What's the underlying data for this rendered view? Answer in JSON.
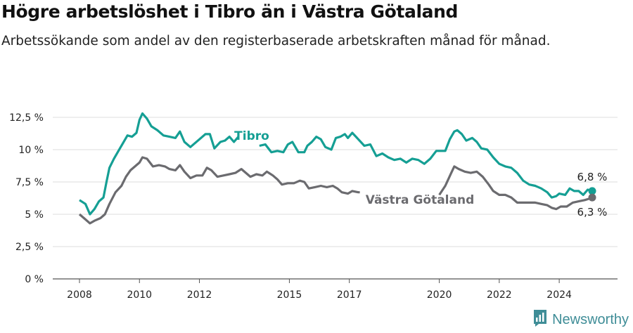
{
  "title": "Högre arbetslöshet i Tibro än i Västra Götaland",
  "subtitle": "Arbetssökande som andel av den registerbaserade arbetskraften månad för månad.",
  "brand": {
    "name": "Newsworthy",
    "color": "#3f8d97"
  },
  "chart_data": {
    "type": "line",
    "title": "Högre arbetslöshet i Tibro än i Västra Götaland",
    "subtitle": "Arbetssökande som andel av den registerbaserade arbetskraften månad för månad.",
    "xlabel": "",
    "ylabel": "",
    "x_ticks": [
      "2008",
      "2010",
      "2012",
      "2015",
      "2017",
      "2020",
      "2022",
      "2024"
    ],
    "x_tick_values": [
      2008,
      2010,
      2012,
      2015,
      2017,
      2020,
      2022,
      2024
    ],
    "y_ticks": [
      "0 %",
      "2,5 %",
      "5 %",
      "7,5 %",
      "10 %",
      "12,5 %"
    ],
    "y_tick_values": [
      0,
      2.5,
      5,
      7.5,
      10,
      12.5
    ],
    "xlim": [
      2007.5,
      2025.5
    ],
    "ylim": [
      0,
      12.5
    ],
    "grid": "horizontal",
    "series": [
      {
        "name": "Tibro",
        "color": "#159f94",
        "end_label": "6,8 %",
        "points": [
          [
            2008.0,
            6.1
          ],
          [
            2008.2,
            5.8
          ],
          [
            2008.35,
            5.0
          ],
          [
            2008.5,
            5.4
          ],
          [
            2008.65,
            6.0
          ],
          [
            2008.8,
            6.3
          ],
          [
            2008.9,
            7.5
          ],
          [
            2009.0,
            8.6
          ],
          [
            2009.15,
            9.3
          ],
          [
            2009.3,
            9.9
          ],
          [
            2009.45,
            10.5
          ],
          [
            2009.6,
            11.1
          ],
          [
            2009.75,
            11.0
          ],
          [
            2009.9,
            11.3
          ],
          [
            2010.0,
            12.3
          ],
          [
            2010.1,
            12.8
          ],
          [
            2010.25,
            12.4
          ],
          [
            2010.4,
            11.8
          ],
          [
            2010.6,
            11.5
          ],
          [
            2010.8,
            11.1
          ],
          [
            2011.0,
            11.0
          ],
          [
            2011.2,
            10.9
          ],
          [
            2011.35,
            11.4
          ],
          [
            2011.5,
            10.6
          ],
          [
            2011.7,
            10.2
          ],
          [
            2011.85,
            10.5
          ],
          [
            2012.0,
            10.8
          ],
          [
            2012.2,
            11.2
          ],
          [
            2012.35,
            11.2
          ],
          [
            2012.5,
            10.1
          ],
          [
            2012.7,
            10.6
          ],
          [
            2012.85,
            10.7
          ],
          [
            2013.0,
            11.0
          ],
          [
            2013.15,
            10.6
          ],
          [
            2013.3,
            11.0
          ],
          [
            2014.0,
            10.3
          ],
          [
            2014.2,
            10.4
          ],
          [
            2014.4,
            9.8
          ],
          [
            2014.6,
            9.9
          ],
          [
            2014.8,
            9.8
          ],
          [
            2014.95,
            10.4
          ],
          [
            2015.1,
            10.6
          ],
          [
            2015.3,
            9.8
          ],
          [
            2015.5,
            9.8
          ],
          [
            2015.6,
            10.3
          ],
          [
            2015.75,
            10.6
          ],
          [
            2015.9,
            11.0
          ],
          [
            2016.05,
            10.8
          ],
          [
            2016.2,
            10.2
          ],
          [
            2016.4,
            10.0
          ],
          [
            2016.55,
            10.9
          ],
          [
            2016.7,
            11.0
          ],
          [
            2016.85,
            11.2
          ],
          [
            2016.95,
            10.9
          ],
          [
            2017.1,
            11.3
          ],
          [
            2017.3,
            10.8
          ],
          [
            2017.5,
            10.3
          ],
          [
            2017.7,
            10.4
          ],
          [
            2017.9,
            9.5
          ],
          [
            2018.1,
            9.7
          ],
          [
            2018.3,
            9.4
          ],
          [
            2018.5,
            9.2
          ],
          [
            2018.7,
            9.3
          ],
          [
            2018.9,
            9.0
          ],
          [
            2019.1,
            9.3
          ],
          [
            2019.3,
            9.2
          ],
          [
            2019.5,
            8.9
          ],
          [
            2019.7,
            9.3
          ],
          [
            2019.9,
            9.9
          ],
          [
            2020.1,
            9.9
          ],
          [
            2020.2,
            9.9
          ],
          [
            2020.35,
            10.8
          ],
          [
            2020.5,
            11.4
          ],
          [
            2020.6,
            11.5
          ],
          [
            2020.75,
            11.2
          ],
          [
            2020.9,
            10.7
          ],
          [
            2021.1,
            10.9
          ],
          [
            2021.25,
            10.6
          ],
          [
            2021.4,
            10.1
          ],
          [
            2021.6,
            10.0
          ],
          [
            2021.8,
            9.4
          ],
          [
            2022.0,
            8.9
          ],
          [
            2022.2,
            8.7
          ],
          [
            2022.4,
            8.6
          ],
          [
            2022.6,
            8.2
          ],
          [
            2022.8,
            7.6
          ],
          [
            2023.0,
            7.3
          ],
          [
            2023.2,
            7.2
          ],
          [
            2023.4,
            7.0
          ],
          [
            2023.6,
            6.7
          ],
          [
            2023.75,
            6.3
          ],
          [
            2023.9,
            6.4
          ],
          [
            2024.0,
            6.6
          ],
          [
            2024.2,
            6.5
          ],
          [
            2024.35,
            7.0
          ],
          [
            2024.5,
            6.8
          ],
          [
            2024.65,
            6.8
          ],
          [
            2024.8,
            6.5
          ],
          [
            2024.95,
            6.9
          ],
          [
            2025.1,
            6.8
          ]
        ]
      },
      {
        "name": "Västra Götaland",
        "color": "#6b6b6f",
        "end_label": "6,3 %",
        "points": [
          [
            2008.0,
            5.0
          ],
          [
            2008.15,
            4.7
          ],
          [
            2008.35,
            4.3
          ],
          [
            2008.5,
            4.5
          ],
          [
            2008.7,
            4.7
          ],
          [
            2008.85,
            5.0
          ],
          [
            2009.0,
            5.8
          ],
          [
            2009.2,
            6.7
          ],
          [
            2009.4,
            7.2
          ],
          [
            2009.55,
            7.9
          ],
          [
            2009.7,
            8.4
          ],
          [
            2009.85,
            8.7
          ],
          [
            2010.0,
            9.0
          ],
          [
            2010.1,
            9.4
          ],
          [
            2010.25,
            9.3
          ],
          [
            2010.45,
            8.7
          ],
          [
            2010.65,
            8.8
          ],
          [
            2010.85,
            8.7
          ],
          [
            2011.0,
            8.5
          ],
          [
            2011.2,
            8.4
          ],
          [
            2011.35,
            8.8
          ],
          [
            2011.5,
            8.3
          ],
          [
            2011.7,
            7.8
          ],
          [
            2011.9,
            8.0
          ],
          [
            2012.1,
            8.0
          ],
          [
            2012.25,
            8.6
          ],
          [
            2012.4,
            8.4
          ],
          [
            2012.6,
            7.9
          ],
          [
            2012.8,
            8.0
          ],
          [
            2013.0,
            8.1
          ],
          [
            2013.2,
            8.2
          ],
          [
            2013.4,
            8.5
          ],
          [
            2013.55,
            8.2
          ],
          [
            2013.7,
            7.9
          ],
          [
            2013.9,
            8.1
          ],
          [
            2014.1,
            8.0
          ],
          [
            2014.25,
            8.3
          ],
          [
            2014.45,
            8.0
          ],
          [
            2014.6,
            7.7
          ],
          [
            2014.75,
            7.3
          ],
          [
            2014.95,
            7.4
          ],
          [
            2015.15,
            7.4
          ],
          [
            2015.35,
            7.6
          ],
          [
            2015.5,
            7.5
          ],
          [
            2015.65,
            7.0
          ],
          [
            2015.85,
            7.1
          ],
          [
            2016.05,
            7.2
          ],
          [
            2016.25,
            7.1
          ],
          [
            2016.45,
            7.2
          ],
          [
            2016.6,
            7.0
          ],
          [
            2016.75,
            6.7
          ],
          [
            2016.95,
            6.6
          ],
          [
            2017.1,
            6.8
          ],
          [
            2017.3,
            6.7
          ],
          [
            2017.35,
            6.7
          ],
          [
            2020.0,
            6.5
          ],
          [
            2020.2,
            7.2
          ],
          [
            2020.4,
            8.2
          ],
          [
            2020.5,
            8.7
          ],
          [
            2020.65,
            8.5
          ],
          [
            2020.85,
            8.3
          ],
          [
            2021.05,
            8.2
          ],
          [
            2021.25,
            8.3
          ],
          [
            2021.45,
            7.9
          ],
          [
            2021.65,
            7.3
          ],
          [
            2021.8,
            6.8
          ],
          [
            2022.0,
            6.5
          ],
          [
            2022.2,
            6.5
          ],
          [
            2022.4,
            6.3
          ],
          [
            2022.6,
            5.9
          ],
          [
            2022.8,
            5.9
          ],
          [
            2023.0,
            5.9
          ],
          [
            2023.2,
            5.9
          ],
          [
            2023.4,
            5.8
          ],
          [
            2023.6,
            5.7
          ],
          [
            2023.75,
            5.5
          ],
          [
            2023.9,
            5.4
          ],
          [
            2024.05,
            5.6
          ],
          [
            2024.25,
            5.6
          ],
          [
            2024.45,
            5.9
          ],
          [
            2024.65,
            6.0
          ],
          [
            2024.85,
            6.1
          ],
          [
            2025.0,
            6.2
          ],
          [
            2025.1,
            6.3
          ]
        ]
      }
    ]
  }
}
